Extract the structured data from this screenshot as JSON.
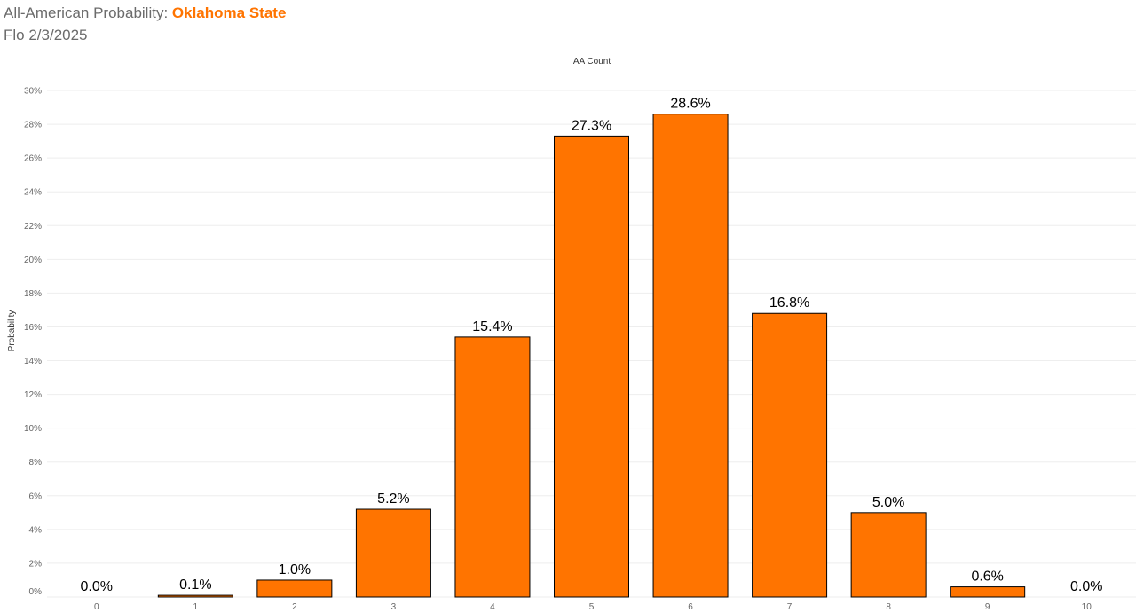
{
  "header": {
    "title_prefix": "All-American Probability: ",
    "title_team": "Oklahoma State",
    "subtitle": "Flo 2/3/2025"
  },
  "colors": {
    "bar_fill": "#ff7400",
    "bar_stroke": "#000000",
    "team_text": "#ff7400",
    "grid": "#eeeeee",
    "axis_text": "#666666"
  },
  "chart_data": {
    "type": "bar",
    "title": "AA Count",
    "xlabel": "",
    "ylabel": "Probability",
    "categories": [
      "0",
      "1",
      "2",
      "3",
      "4",
      "5",
      "6",
      "7",
      "8",
      "9",
      "10"
    ],
    "values": [
      0.0,
      0.1,
      1.0,
      5.2,
      15.4,
      27.3,
      28.6,
      16.8,
      5.0,
      0.6,
      0.0
    ],
    "data_labels": [
      "0.0%",
      "0.1%",
      "1.0%",
      "5.2%",
      "15.4%",
      "27.3%",
      "28.6%",
      "16.8%",
      "5.0%",
      "0.6%",
      "0.0%"
    ],
    "ylim": [
      0,
      30
    ],
    "yticks": [
      0,
      2,
      4,
      6,
      8,
      10,
      12,
      14,
      16,
      18,
      20,
      22,
      24,
      26,
      28,
      30
    ],
    "ytick_labels": [
      "0%",
      "2%",
      "4%",
      "6%",
      "8%",
      "10%",
      "12%",
      "14%",
      "16%",
      "18%",
      "20%",
      "22%",
      "24%",
      "26%",
      "28%",
      "30%"
    ],
    "grid": true,
    "legend": "none"
  }
}
